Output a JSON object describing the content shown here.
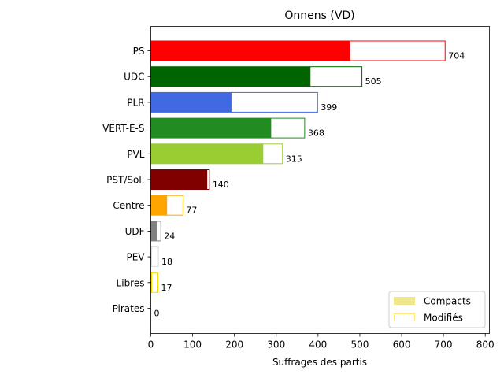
{
  "chart_data": {
    "type": "bar",
    "orientation": "horizontal",
    "title": "Onnens (VD)",
    "xlabel": "Suffrages des partis",
    "ylabel": "",
    "xlim": [
      0,
      810
    ],
    "xticks": [
      0,
      100,
      200,
      300,
      400,
      500,
      600,
      700,
      800
    ],
    "legend": {
      "placement": "bottom-right",
      "entries": [
        {
          "label": "Compacts",
          "color": "#f0e68c",
          "style": "filled"
        },
        {
          "label": "Modifiés",
          "color": "#ffe87c",
          "style": "outline"
        }
      ]
    },
    "categories": [
      "PS",
      "UDC",
      "PLR",
      "VERT-E-S",
      "PVL",
      "PST/Sol.",
      "Centre",
      "UDF",
      "PEV",
      "Libres",
      "Pirates"
    ],
    "colors": [
      "#ff0000",
      "#006400",
      "#4169e1",
      "#228b22",
      "#9acd32",
      "#800000",
      "#ffa500",
      "#808080",
      "#dddddd",
      "#ffd700",
      "#800080"
    ],
    "series": [
      {
        "name": "Compacts",
        "values": [
          476,
          381,
          192,
          287,
          268,
          134,
          38,
          15,
          2,
          2,
          0
        ]
      },
      {
        "name": "Modifiés",
        "values": [
          228,
          124,
          207,
          81,
          47,
          6,
          39,
          9,
          16,
          15,
          0
        ]
      }
    ],
    "totals": [
      704,
      505,
      399,
      368,
      315,
      140,
      77,
      24,
      18,
      17,
      0
    ]
  }
}
